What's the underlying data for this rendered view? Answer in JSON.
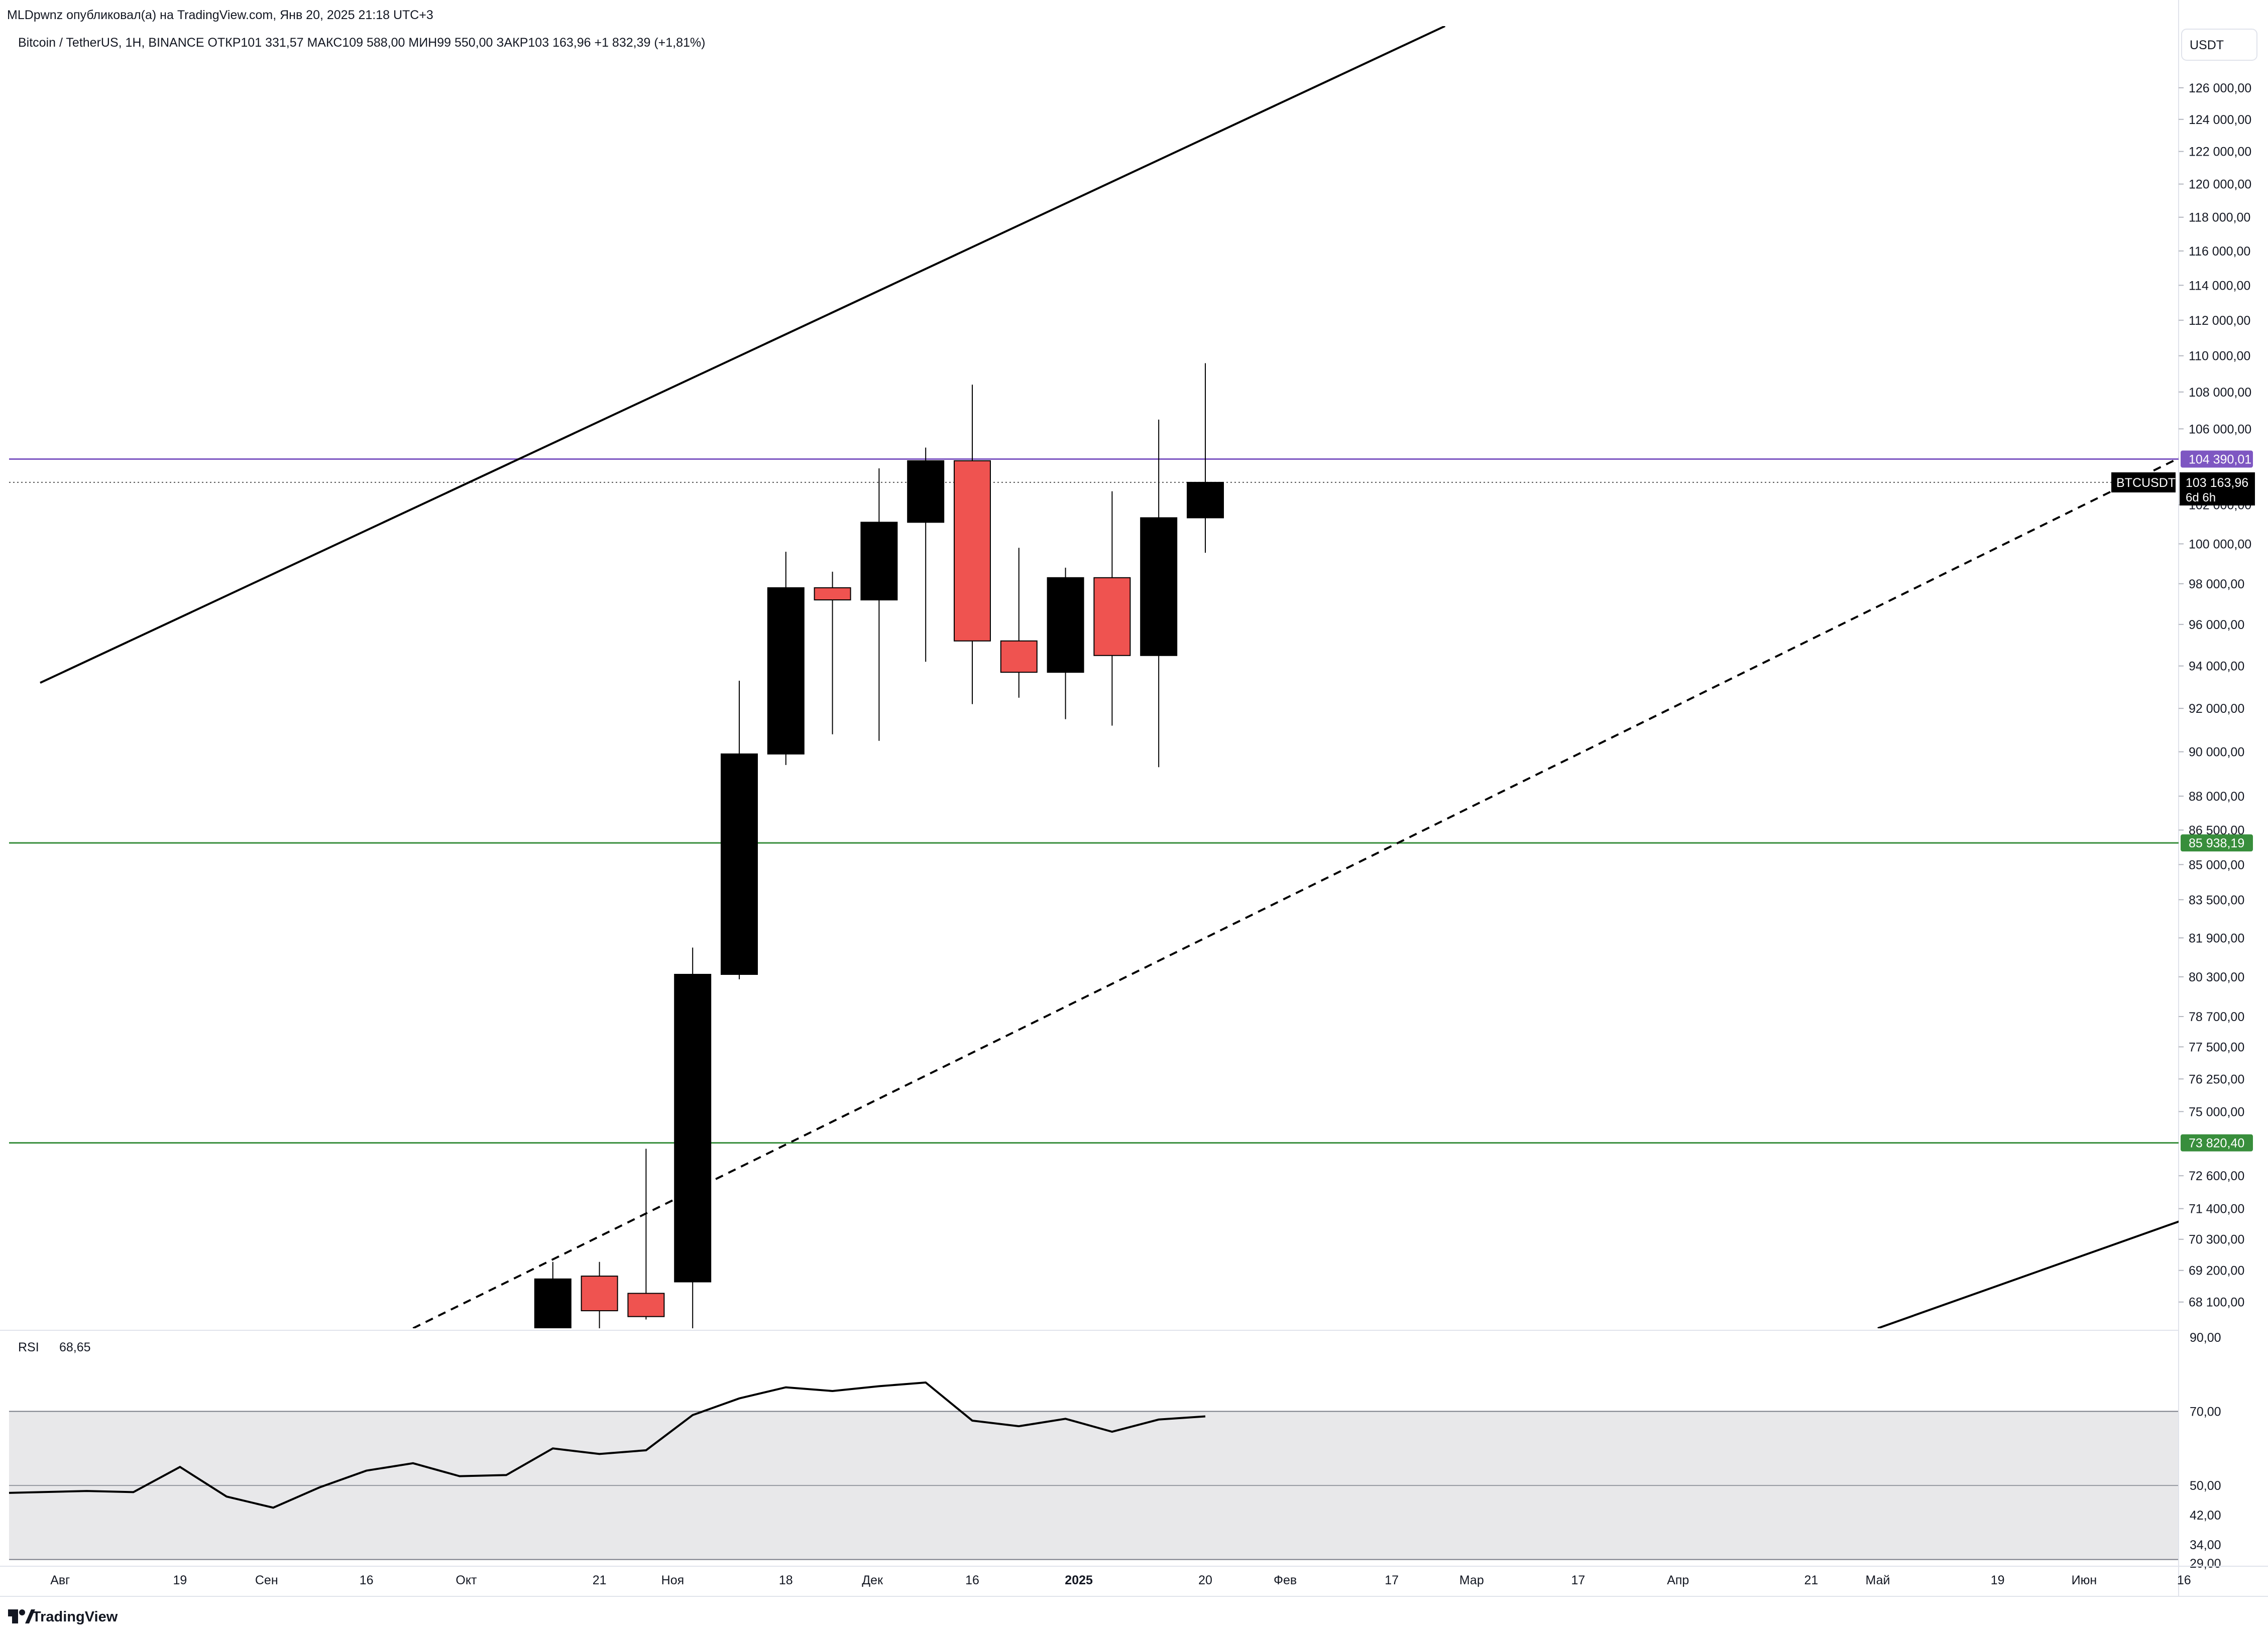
{
  "header": {
    "published": "MLDpwnz опубликовал(а) на TradingView.com, Янв 20, 2025 21:18 UTC+3",
    "symbol_line": "Bitcoin / TetherUS, 1Н, BINANCE  ОТКР101 331,57  МАКС109 588,00  МИН99 550,00  ЗАКР103 163,96  +1 832,39 (+1,81%)"
  },
  "currency_button": "USDT",
  "branding": "TradingView",
  "colors": {
    "up": "#000000",
    "down": "#ef5350",
    "resistance": "#7e57c2",
    "support": "#388e3c",
    "rsi_band": "#e8e8ea"
  },
  "chart_data": [
    {
      "type": "candlestick",
      "title": "Bitcoin / TetherUS, 1Н, BINANCE",
      "y_axis": {
        "scale": "log",
        "range": [
          67200,
          130000
        ],
        "ticks": [
          "126 000,00",
          "124 000,00",
          "122 000,00",
          "120 000,00",
          "118 000,00",
          "116 000,00",
          "114 000,00",
          "112 000,00",
          "110 000,00",
          "108 000,00",
          "106 000,00",
          "102 000,00",
          "100 000,00",
          "98 000,00",
          "96 000,00",
          "94 000,00",
          "92 000,00",
          "90 000,00",
          "88 000,00",
          "86 500,00",
          "85 000,00",
          "83 500,00",
          "81 900,00",
          "80 300,00",
          "78 700,00",
          "77 500,00",
          "76 250,00",
          "75 000,00",
          "72 600,00",
          "71 400,00",
          "70 300,00",
          "69 200,00",
          "68 100,00"
        ]
      },
      "x_axis": {
        "ticks": [
          "Авг",
          "19",
          "Сен",
          "16",
          "Окт",
          "21",
          "Ноя",
          "18",
          "Дек",
          "16",
          "2025",
          "20",
          "Фев",
          "17",
          "Мар",
          "17",
          "Апр",
          "21",
          "Май",
          "19",
          "Июн",
          "16"
        ]
      },
      "candles": [
        {
          "date": "2024-10-14",
          "open": 62900,
          "high": 69500,
          "low": 62300,
          "close": 68900
        },
        {
          "date": "2024-10-21",
          "open": 69000,
          "high": 69500,
          "low": 66500,
          "close": 67800
        },
        {
          "date": "2024-10-28",
          "open": 68400,
          "high": 73600,
          "low": 67500,
          "close": 67600
        },
        {
          "date": "2024-11-04",
          "open": 68800,
          "high": 81500,
          "low": 66800,
          "close": 80400
        },
        {
          "date": "2024-11-11",
          "open": 80400,
          "high": 93300,
          "low": 80200,
          "close": 89900
        },
        {
          "date": "2024-11-18",
          "open": 89900,
          "high": 99600,
          "low": 89400,
          "close": 97800
        },
        {
          "date": "2024-11-25",
          "open": 97800,
          "high": 98600,
          "low": 90800,
          "close": 97200
        },
        {
          "date": "2024-12-02",
          "open": 97200,
          "high": 103900,
          "low": 90500,
          "close": 101100
        },
        {
          "date": "2024-12-09",
          "open": 101100,
          "high": 105000,
          "low": 94200,
          "close": 104300
        },
        {
          "date": "2024-12-16",
          "open": 104300,
          "high": 108400,
          "low": 92200,
          "close": 95200
        },
        {
          "date": "2024-12-23",
          "open": 95200,
          "high": 99800,
          "low": 92500,
          "close": 93700
        },
        {
          "date": "2024-12-30",
          "open": 93700,
          "high": 98800,
          "low": 91500,
          "close": 98300
        },
        {
          "date": "2025-01-06",
          "open": 98300,
          "high": 102700,
          "low": 91200,
          "close": 94500
        },
        {
          "date": "2025-01-13",
          "open": 94500,
          "high": 106500,
          "low": 89300,
          "close": 101330
        },
        {
          "date": "2025-01-20",
          "open": 101330,
          "high": 109588,
          "low": 99550,
          "close": 103164
        }
      ],
      "levels": [
        {
          "label": "104 390,01",
          "value": 104390.01,
          "color": "#7e57c2"
        },
        {
          "label": "85 938,19",
          "value": 85938.19,
          "color": "#388e3c"
        },
        {
          "label": "73 820,40",
          "value": 73820.4,
          "color": "#388e3c"
        }
      ],
      "price_tag": {
        "symbol": "BTCUSDT",
        "value": "103 163,96",
        "countdown": "6d 6h",
        "price": 103163.96
      },
      "trendlines": [
        {
          "style": "solid",
          "from": {
            "date": "2024-07-29",
            "price": 93200
          },
          "to": {
            "date": "2025-02-25",
            "price": 130000
          }
        },
        {
          "style": "dashed",
          "from": {
            "date": "2024-09-23",
            "price": 67200
          },
          "to": {
            "date": "2025-06-23",
            "price": 105800
          }
        },
        {
          "style": "solid",
          "from": {
            "date": "2025-05-01",
            "price": 67200
          },
          "to": {
            "date": "2025-06-23",
            "price": 71600
          }
        }
      ]
    },
    {
      "type": "line",
      "title": "RSI",
      "value_label": "68,65",
      "y_axis": {
        "range": [
          29,
          90
        ],
        "ticks": [
          "90,00",
          "70,00",
          "50,00",
          "42,00",
          "34,00",
          "29,00"
        ]
      },
      "band": [
        30,
        70
      ],
      "midline": 50,
      "points": [
        {
          "date": "2024-07-29",
          "value": 48
        },
        {
          "date": "2024-08-05",
          "value": 48.5
        },
        {
          "date": "2024-08-12",
          "value": 48.2
        },
        {
          "date": "2024-08-19",
          "value": 55
        },
        {
          "date": "2024-08-26",
          "value": 47
        },
        {
          "date": "2024-09-02",
          "value": 44
        },
        {
          "date": "2024-09-09",
          "value": 49.5
        },
        {
          "date": "2024-09-16",
          "value": 54
        },
        {
          "date": "2024-09-23",
          "value": 56
        },
        {
          "date": "2024-09-30",
          "value": 52.5
        },
        {
          "date": "2024-10-07",
          "value": 52.8
        },
        {
          "date": "2024-10-14",
          "value": 60
        },
        {
          "date": "2024-10-21",
          "value": 58.5
        },
        {
          "date": "2024-10-28",
          "value": 59.5
        },
        {
          "date": "2024-11-04",
          "value": 69
        },
        {
          "date": "2024-11-11",
          "value": 73.5
        },
        {
          "date": "2024-11-18",
          "value": 76.5
        },
        {
          "date": "2024-11-25",
          "value": 75.5
        },
        {
          "date": "2024-12-02",
          "value": 76.8
        },
        {
          "date": "2024-12-09",
          "value": 77.8
        },
        {
          "date": "2024-12-16",
          "value": 67.5
        },
        {
          "date": "2024-12-23",
          "value": 66
        },
        {
          "date": "2024-12-30",
          "value": 68
        },
        {
          "date": "2025-01-06",
          "value": 64.5
        },
        {
          "date": "2025-01-13",
          "value": 67.8
        },
        {
          "date": "2025-01-20",
          "value": 68.65
        }
      ]
    }
  ]
}
